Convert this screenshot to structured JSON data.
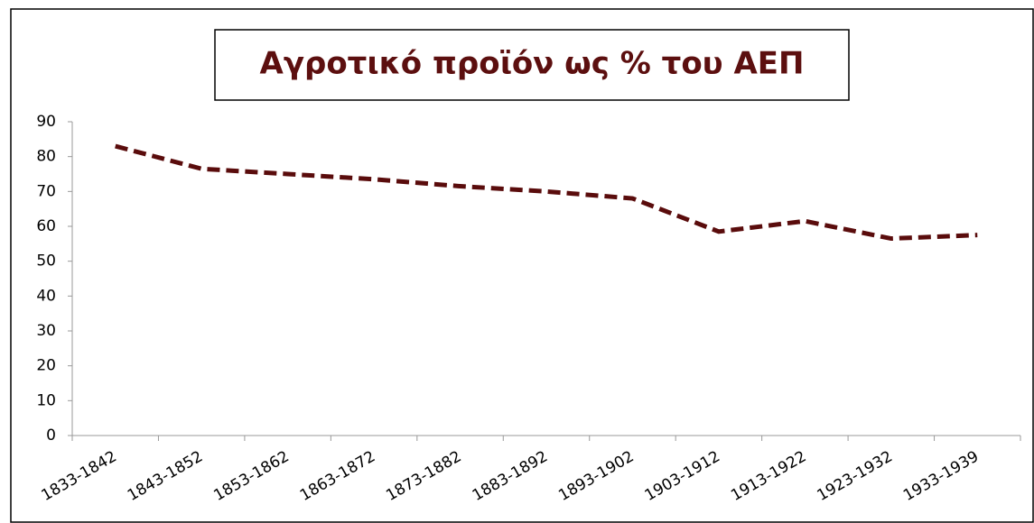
{
  "chart_data": {
    "type": "line",
    "title": "Αγροτικό προϊόν ως % του ΑΕΠ",
    "categories": [
      "1833-1842",
      "1843-1852",
      "1853-1862",
      "1863-1872",
      "1873-1882",
      "1883-1892",
      "1893-1902",
      "1903-1912",
      "1913-1922",
      "1923-1932",
      "1933-1939"
    ],
    "series": [
      {
        "name": "Αγροτικό προϊόν ως % του ΑΕΠ",
        "color": "#5a0c0c",
        "values": [
          83,
          76.5,
          75,
          73.5,
          71.5,
          70,
          68,
          58.5,
          61.5,
          56.5,
          57.5
        ]
      }
    ],
    "ylim": [
      0,
      90
    ],
    "yticks": [
      0,
      10,
      20,
      30,
      40,
      50,
      60,
      70,
      80,
      90
    ],
    "grid": false
  }
}
